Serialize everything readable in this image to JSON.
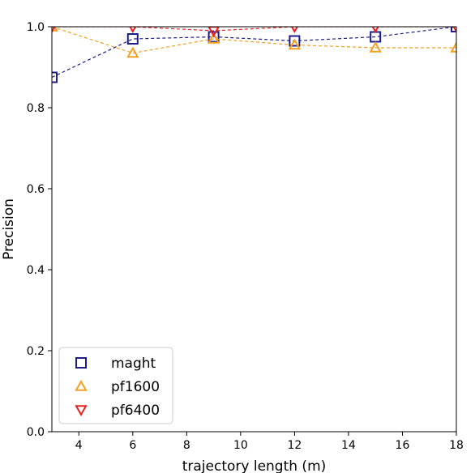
{
  "chart_data": {
    "type": "line",
    "xlabel": "trajectory length (m)",
    "ylabel": "Precision",
    "xlim": [
      3,
      18
    ],
    "ylim": [
      0.0,
      1.0
    ],
    "xticks": [
      "4",
      "6",
      "8",
      "10",
      "12",
      "14",
      "16",
      "18"
    ],
    "yticks": [
      "0.0",
      "0.2",
      "0.4",
      "0.6",
      "0.8",
      "1.0"
    ],
    "grid": false,
    "legend_position": "lower-left",
    "x": [
      3,
      6,
      9,
      12,
      15,
      18
    ],
    "series": [
      {
        "name": "maght",
        "values": [
          0.875,
          0.97,
          0.975,
          0.965,
          0.975,
          1.0
        ],
        "color": "#1c1c8c",
        "marker": "square"
      },
      {
        "name": "pf1600",
        "values": [
          1.0,
          0.935,
          0.97,
          0.955,
          0.948,
          0.948
        ],
        "color": "#f5a020",
        "marker": "triangle-up"
      },
      {
        "name": "pf6400",
        "values": [
          1.0,
          1.0,
          0.99,
          1.0,
          1.0,
          1.0
        ],
        "color": "#e82020",
        "marker": "triangle-down"
      }
    ]
  }
}
